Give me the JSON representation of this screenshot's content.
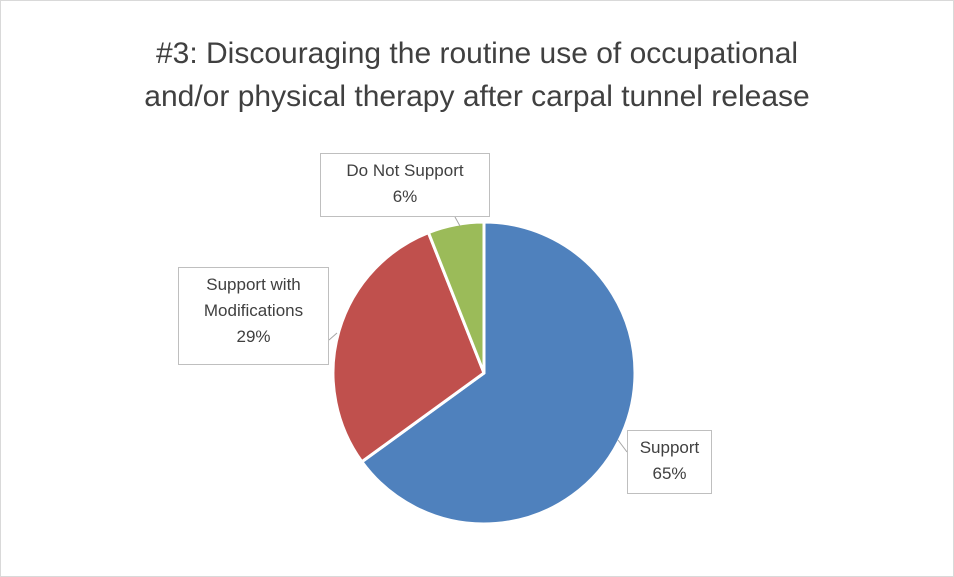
{
  "chart_data": {
    "type": "pie",
    "title": "#3: Discouraging the routine use of occupational and/or physical therapy after carpal tunnel release",
    "categories": [
      "Support",
      "Support with Modifications",
      "Do Not Support"
    ],
    "values": [
      65,
      29,
      6
    ],
    "value_labels": [
      "65%",
      "29%",
      "6%"
    ],
    "colors": [
      "#4f81bd",
      "#c0504d",
      "#9bbb59"
    ]
  }
}
